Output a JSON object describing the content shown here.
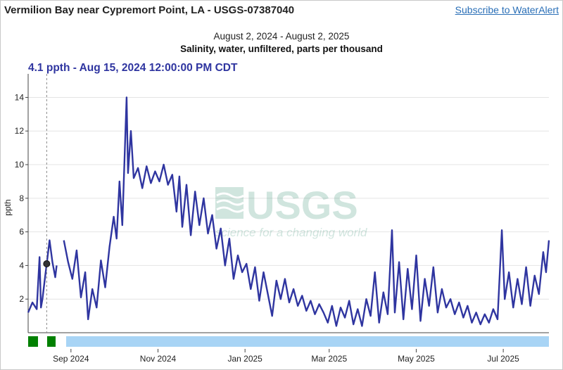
{
  "header": {
    "title": "Vermilion Bay near Cypremort Point, LA - USGS-07387040",
    "subscribe_label": "Subscribe to WaterAlert"
  },
  "chart_header": {
    "date_range": "August 2, 2024 - August 2, 2025",
    "parameter": "Salinity, water, unfiltered, parts per thousand",
    "tooltip": "4.1 ppth - Aug 15, 2024 12:00:00 PM CDT"
  },
  "watermark": {
    "logo": "USGS",
    "tagline": "science for a changing world"
  },
  "colors": {
    "series": "#2f35a0",
    "cursor": "#888888",
    "approved_bar": "#008000",
    "provisional_bar": "#a8d4f5"
  },
  "chart_data": {
    "type": "line",
    "ylabel": "ppth",
    "xlabel": "",
    "ylim": [
      0,
      15.4
    ],
    "xlim": [
      "2024-08-02",
      "2025-08-02"
    ],
    "yticks": [
      2,
      4,
      6,
      8,
      10,
      12,
      14
    ],
    "xticks": [
      {
        "date": "2024-09-01",
        "label": "Sep 2024"
      },
      {
        "date": "2024-11-01",
        "label": "Nov 2024"
      },
      {
        "date": "2025-01-01",
        "label": "Jan 2025"
      },
      {
        "date": "2025-03-01",
        "label": "Mar 2025"
      },
      {
        "date": "2025-05-01",
        "label": "May 2025"
      },
      {
        "date": "2025-07-01",
        "label": "Jul 2025"
      }
    ],
    "grid": true,
    "cursor": {
      "date": "2024-08-15",
      "value": 4.1
    },
    "series": [
      {
        "points": [
          [
            "2024-08-02",
            1.2
          ],
          [
            "2024-08-05",
            1.8
          ],
          [
            "2024-08-08",
            1.4
          ],
          [
            "2024-08-10",
            4.5
          ],
          [
            "2024-08-11",
            1.5
          ],
          [
            "2024-08-12",
            2.0
          ],
          [
            "2024-08-14",
            3.4
          ],
          [
            "2024-08-15",
            4.1
          ],
          [
            "2024-08-17",
            5.5
          ],
          [
            "2024-08-19",
            4.2
          ],
          [
            "2024-08-21",
            3.3
          ],
          [
            "2024-08-22",
            4.0
          ],
          [
            "2024-08-23",
            null
          ],
          [
            "2024-08-27",
            5.5
          ],
          [
            "2024-08-30",
            4.2
          ],
          [
            "2024-09-02",
            3.2
          ],
          [
            "2024-09-05",
            4.9
          ],
          [
            "2024-09-08",
            2.1
          ],
          [
            "2024-09-11",
            3.6
          ],
          [
            "2024-09-13",
            0.8
          ],
          [
            "2024-09-16",
            2.6
          ],
          [
            "2024-09-19",
            1.5
          ],
          [
            "2024-09-22",
            4.3
          ],
          [
            "2024-09-25",
            2.7
          ],
          [
            "2024-09-28",
            5.1
          ],
          [
            "2024-10-01",
            6.9
          ],
          [
            "2024-10-03",
            5.6
          ],
          [
            "2024-10-05",
            9.0
          ],
          [
            "2024-10-07",
            6.4
          ],
          [
            "2024-10-10",
            14.0
          ],
          [
            "2024-10-11",
            9.5
          ],
          [
            "2024-10-13",
            12.0
          ],
          [
            "2024-10-15",
            9.2
          ],
          [
            "2024-10-18",
            9.8
          ],
          [
            "2024-10-21",
            8.6
          ],
          [
            "2024-10-24",
            9.9
          ],
          [
            "2024-10-27",
            8.9
          ],
          [
            "2024-10-30",
            9.6
          ],
          [
            "2024-11-02",
            9.0
          ],
          [
            "2024-11-05",
            10.0
          ],
          [
            "2024-11-08",
            8.8
          ],
          [
            "2024-11-11",
            9.4
          ],
          [
            "2024-11-14",
            7.2
          ],
          [
            "2024-11-16",
            9.3
          ],
          [
            "2024-11-18",
            6.3
          ],
          [
            "2024-11-21",
            8.8
          ],
          [
            "2024-11-24",
            5.8
          ],
          [
            "2024-11-27",
            8.4
          ],
          [
            "2024-11-30",
            6.4
          ],
          [
            "2024-12-03",
            8.0
          ],
          [
            "2024-12-06",
            5.9
          ],
          [
            "2024-12-09",
            7.0
          ],
          [
            "2024-12-12",
            5.0
          ],
          [
            "2024-12-15",
            6.2
          ],
          [
            "2024-12-18",
            4.0
          ],
          [
            "2024-12-21",
            5.6
          ],
          [
            "2024-12-24",
            3.2
          ],
          [
            "2024-12-27",
            4.6
          ],
          [
            "2024-12-30",
            3.6
          ],
          [
            "2025-01-02",
            4.1
          ],
          [
            "2025-01-05",
            2.6
          ],
          [
            "2025-01-08",
            3.9
          ],
          [
            "2025-01-11",
            1.9
          ],
          [
            "2025-01-14",
            3.6
          ],
          [
            "2025-01-17",
            2.3
          ],
          [
            "2025-01-20",
            1.0
          ],
          [
            "2025-01-23",
            3.1
          ],
          [
            "2025-01-26",
            2.0
          ],
          [
            "2025-01-29",
            3.2
          ],
          [
            "2025-02-01",
            1.8
          ],
          [
            "2025-02-04",
            2.6
          ],
          [
            "2025-02-07",
            1.6
          ],
          [
            "2025-02-10",
            2.2
          ],
          [
            "2025-02-13",
            1.3
          ],
          [
            "2025-02-16",
            1.9
          ],
          [
            "2025-02-19",
            1.1
          ],
          [
            "2025-02-22",
            1.7
          ],
          [
            "2025-02-25",
            1.2
          ],
          [
            "2025-02-28",
            0.6
          ],
          [
            "2025-03-03",
            1.6
          ],
          [
            "2025-03-06",
            0.4
          ],
          [
            "2025-03-09",
            1.5
          ],
          [
            "2025-03-12",
            0.9
          ],
          [
            "2025-03-15",
            1.9
          ],
          [
            "2025-03-18",
            0.5
          ],
          [
            "2025-03-21",
            1.4
          ],
          [
            "2025-03-24",
            0.4
          ],
          [
            "2025-03-27",
            2.0
          ],
          [
            "2025-03-30",
            1.0
          ],
          [
            "2025-04-02",
            3.6
          ],
          [
            "2025-04-05",
            0.6
          ],
          [
            "2025-04-08",
            2.4
          ],
          [
            "2025-04-11",
            1.1
          ],
          [
            "2025-04-14",
            6.1
          ],
          [
            "2025-04-16",
            1.2
          ],
          [
            "2025-04-19",
            4.2
          ],
          [
            "2025-04-22",
            0.8
          ],
          [
            "2025-04-25",
            3.8
          ],
          [
            "2025-04-28",
            1.4
          ],
          [
            "2025-05-01",
            4.6
          ],
          [
            "2025-05-04",
            0.7
          ],
          [
            "2025-05-07",
            3.2
          ],
          [
            "2025-05-10",
            1.6
          ],
          [
            "2025-05-13",
            3.9
          ],
          [
            "2025-05-16",
            1.2
          ],
          [
            "2025-05-19",
            2.6
          ],
          [
            "2025-05-22",
            1.5
          ],
          [
            "2025-05-25",
            2.0
          ],
          [
            "2025-05-28",
            1.1
          ],
          [
            "2025-05-31",
            1.8
          ],
          [
            "2025-06-03",
            0.9
          ],
          [
            "2025-06-06",
            1.6
          ],
          [
            "2025-06-09",
            0.6
          ],
          [
            "2025-06-12",
            1.2
          ],
          [
            "2025-06-15",
            0.5
          ],
          [
            "2025-06-18",
            1.1
          ],
          [
            "2025-06-21",
            0.6
          ],
          [
            "2025-06-24",
            1.4
          ],
          [
            "2025-06-27",
            0.8
          ],
          [
            "2025-06-30",
            6.1
          ],
          [
            "2025-07-02",
            2.0
          ],
          [
            "2025-07-05",
            3.6
          ],
          [
            "2025-07-08",
            1.5
          ],
          [
            "2025-07-11",
            3.2
          ],
          [
            "2025-07-14",
            1.7
          ],
          [
            "2025-07-17",
            3.9
          ],
          [
            "2025-07-20",
            1.6
          ],
          [
            "2025-07-23",
            3.4
          ],
          [
            "2025-07-26",
            2.3
          ],
          [
            "2025-07-29",
            4.8
          ],
          [
            "2025-07-31",
            3.6
          ],
          [
            "2025-08-02",
            5.5
          ]
        ]
      }
    ]
  }
}
